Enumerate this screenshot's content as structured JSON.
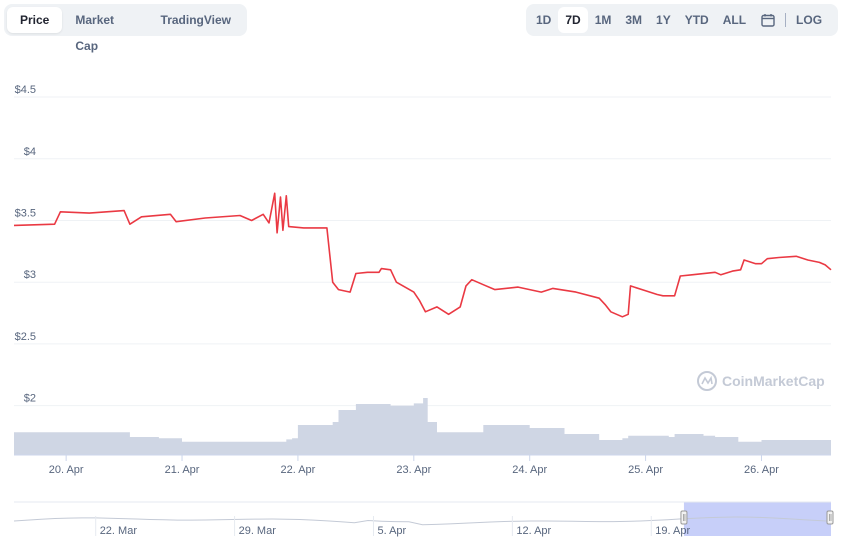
{
  "tabs": [
    {
      "label": "Price",
      "active": true
    },
    {
      "label": "Market Cap",
      "active": false
    },
    {
      "label": "TradingView",
      "active": false
    }
  ],
  "ranges": [
    {
      "label": "1D",
      "active": false
    },
    {
      "label": "7D",
      "active": true
    },
    {
      "label": "1M",
      "active": false
    },
    {
      "label": "3M",
      "active": false
    },
    {
      "label": "1Y",
      "active": false
    },
    {
      "label": "YTD",
      "active": false
    },
    {
      "label": "ALL",
      "active": false
    }
  ],
  "log_label": "LOG",
  "calendar_icon": "calendar-icon",
  "watermark": "CoinMarketCap",
  "colors": {
    "price_line": "#ea3943",
    "volume": "#cfd6e4",
    "navigator_fill": "#c7cff9",
    "grid": "#eff2f5"
  },
  "chart_data": {
    "type": "line",
    "y_ticks": [
      "$4.5",
      "$4",
      "$3.5",
      "$3",
      "$2.5",
      "$2"
    ],
    "y_tick_values": [
      4.5,
      4,
      3.5,
      3,
      2.5,
      2
    ],
    "ylim": [
      1.6,
      4.8
    ],
    "x_ticks": [
      "20. Apr",
      "21. Apr",
      "22. Apr",
      "23. Apr",
      "24. Apr",
      "25. Apr",
      "26. Apr"
    ],
    "x_tick_values": [
      20,
      21,
      22,
      23,
      24,
      25,
      26
    ],
    "xlim": [
      19.55,
      26.6
    ],
    "series": [
      {
        "points": [
          [
            19.55,
            3.46
          ],
          [
            19.9,
            3.47
          ],
          [
            19.95,
            3.57
          ],
          [
            20.2,
            3.56
          ],
          [
            20.5,
            3.58
          ],
          [
            20.55,
            3.47
          ],
          [
            20.65,
            3.53
          ],
          [
            20.9,
            3.55
          ],
          [
            20.95,
            3.49
          ],
          [
            21.2,
            3.52
          ],
          [
            21.5,
            3.54
          ],
          [
            21.6,
            3.5
          ],
          [
            21.7,
            3.55
          ],
          [
            21.75,
            3.48
          ],
          [
            21.8,
            3.72
          ],
          [
            21.82,
            3.4
          ],
          [
            21.85,
            3.69
          ],
          [
            21.87,
            3.42
          ],
          [
            21.9,
            3.7
          ],
          [
            21.92,
            3.45
          ],
          [
            22.05,
            3.44
          ],
          [
            22.25,
            3.44
          ],
          [
            22.3,
            3.0
          ],
          [
            22.35,
            2.94
          ],
          [
            22.45,
            2.92
          ],
          [
            22.5,
            3.07
          ],
          [
            22.6,
            3.08
          ],
          [
            22.7,
            3.08
          ],
          [
            22.72,
            3.11
          ],
          [
            22.8,
            3.1
          ],
          [
            22.85,
            3.0
          ],
          [
            23.0,
            2.92
          ],
          [
            23.05,
            2.85
          ],
          [
            23.1,
            2.76
          ],
          [
            23.2,
            2.8
          ],
          [
            23.3,
            2.74
          ],
          [
            23.4,
            2.8
          ],
          [
            23.45,
            2.97
          ],
          [
            23.5,
            3.02
          ],
          [
            23.6,
            2.98
          ],
          [
            23.7,
            2.94
          ],
          [
            23.9,
            2.96
          ],
          [
            24.1,
            2.92
          ],
          [
            24.2,
            2.95
          ],
          [
            24.4,
            2.92
          ],
          [
            24.6,
            2.87
          ],
          [
            24.65,
            2.82
          ],
          [
            24.7,
            2.76
          ],
          [
            24.8,
            2.72
          ],
          [
            24.85,
            2.74
          ],
          [
            24.87,
            2.97
          ],
          [
            25.0,
            2.93
          ],
          [
            25.1,
            2.9
          ],
          [
            25.15,
            2.89
          ],
          [
            25.25,
            2.89
          ],
          [
            25.3,
            3.05
          ],
          [
            25.4,
            3.06
          ],
          [
            25.6,
            3.08
          ],
          [
            25.65,
            3.06
          ],
          [
            25.75,
            3.09
          ],
          [
            25.82,
            3.1
          ],
          [
            25.85,
            3.18
          ],
          [
            25.95,
            3.15
          ],
          [
            26.0,
            3.15
          ],
          [
            26.05,
            3.19
          ],
          [
            26.15,
            3.2
          ],
          [
            26.3,
            3.21
          ],
          [
            26.4,
            3.18
          ],
          [
            26.5,
            3.16
          ],
          [
            26.55,
            3.14
          ],
          [
            26.6,
            3.1
          ]
        ]
      }
    ],
    "volume": {
      "ymax": 1.0,
      "points": [
        [
          19.55,
          0.38
        ],
        [
          20.5,
          0.38
        ],
        [
          20.55,
          0.3
        ],
        [
          20.8,
          0.28
        ],
        [
          21.0,
          0.22
        ],
        [
          21.5,
          0.22
        ],
        [
          21.9,
          0.26
        ],
        [
          21.95,
          0.28
        ],
        [
          22.0,
          0.5
        ],
        [
          22.3,
          0.55
        ],
        [
          22.35,
          0.75
        ],
        [
          22.5,
          0.85
        ],
        [
          22.8,
          0.82
        ],
        [
          23.0,
          0.86
        ],
        [
          23.08,
          0.95
        ],
        [
          23.12,
          0.55
        ],
        [
          23.2,
          0.38
        ],
        [
          23.6,
          0.5
        ],
        [
          24.0,
          0.45
        ],
        [
          24.3,
          0.35
        ],
        [
          24.6,
          0.25
        ],
        [
          24.8,
          0.28
        ],
        [
          24.85,
          0.32
        ],
        [
          25.0,
          0.32
        ],
        [
          25.2,
          0.3
        ],
        [
          25.25,
          0.35
        ],
        [
          25.5,
          0.32
        ],
        [
          25.6,
          0.3
        ],
        [
          25.8,
          0.22
        ],
        [
          26.0,
          0.25
        ],
        [
          26.6,
          0.22
        ]
      ]
    }
  },
  "navigator": {
    "x_ticks": [
      "22. Mar",
      "29. Mar",
      "5. Apr",
      "12. Apr",
      "19. Apr"
    ],
    "x_tick_values": [
      0.1,
      0.27,
      0.44,
      0.61,
      0.78
    ],
    "selected_range": [
      0.82,
      1.0
    ]
  }
}
